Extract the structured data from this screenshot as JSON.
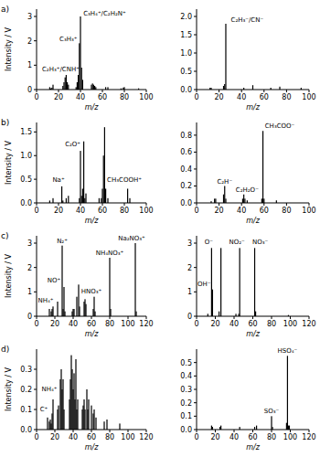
{
  "chart_data": [
    {
      "type": "bar",
      "title": "a)",
      "xlabel": "m/z",
      "ylabel": "Intensity / V",
      "color": "#000000",
      "x": [
        12,
        13,
        14,
        15,
        24,
        25,
        26,
        27,
        28,
        29,
        36,
        37,
        38,
        39,
        40,
        41,
        42,
        50,
        51,
        52,
        53,
        54,
        63,
        65,
        77,
        79,
        80,
        93
      ],
      "values": [
        0.1,
        0.05,
        0.08,
        0.2,
        0.15,
        0.3,
        0.5,
        0.6,
        0.3,
        0.2,
        0.1,
        0.3,
        0.6,
        1.9,
        3.0,
        0.9,
        0.4,
        0.2,
        0.25,
        0.2,
        0.15,
        0.1,
        0.1,
        0.1,
        0.05,
        0.08,
        0.1,
        0.05
      ],
      "xlim": [
        0,
        100
      ],
      "xticks": [
        0,
        20,
        40,
        60,
        80,
        100
      ],
      "ylim": [
        0,
        3.3
      ],
      "yticks": [
        0,
        1,
        2,
        3
      ],
      "annotations": [
        {
          "text": "C₂H₃⁺/CNH⁺",
          "x": 22,
          "y": 0.75
        },
        {
          "text": "C₃H₃⁺",
          "x": 29,
          "y": 2.0
        },
        {
          "text": "C₃H₄⁺/C₂H₂N⁺",
          "x": 62,
          "y": 3.05
        }
      ]
    },
    {
      "type": "bar",
      "xlabel": "m/z",
      "color": "#000000",
      "x": [
        12,
        13,
        24,
        25,
        26,
        42,
        50,
        66,
        74,
        93
      ],
      "values": [
        0.05,
        0.05,
        0.1,
        0.15,
        1.8,
        0.05,
        0.12,
        0.05,
        0.08,
        0.05
      ],
      "xlim": [
        0,
        100
      ],
      "xticks": [
        0,
        20,
        40,
        60,
        80,
        100
      ],
      "ylim": [
        0,
        2.2
      ],
      "yticks": [
        {
          "value": 0,
          "label": "0.0"
        },
        {
          "value": 0.5,
          "label": "0.5"
        },
        {
          "value": 1,
          "label": "1.0"
        },
        {
          "value": 1.5,
          "label": "1.5"
        },
        {
          "value": 2,
          "label": "2.0"
        }
      ],
      "annotations": [
        {
          "text": "C₂H₃⁻/CN⁻",
          "x": 45,
          "y": 1.85
        }
      ]
    },
    {
      "type": "bar",
      "title": "b)",
      "xlabel": "m/z",
      "ylabel": "Intensity / V",
      "color": "#000000",
      "x": [
        12,
        15,
        23,
        24,
        27,
        29,
        39,
        40,
        41,
        42,
        43,
        44,
        45,
        57,
        59,
        60,
        61,
        62,
        63,
        65,
        83,
        85
      ],
      "values": [
        0.05,
        0.1,
        0.35,
        0.05,
        0.1,
        0.15,
        0.1,
        1.1,
        0.15,
        0.3,
        1.3,
        0.1,
        0.2,
        0.1,
        0.1,
        0.3,
        1.0,
        1.6,
        0.3,
        0.1,
        0.3,
        0.1
      ],
      "xlim": [
        0,
        100
      ],
      "xticks": [
        0,
        20,
        40,
        60,
        80,
        100
      ],
      "ylim": [
        0,
        1.7
      ],
      "yticks": [
        {
          "value": 0,
          "label": "0.0"
        },
        {
          "value": 0.5,
          "label": "0.5"
        },
        {
          "value": 1,
          "label": "1.0"
        },
        {
          "value": 1.5,
          "label": "1.5"
        }
      ],
      "annotations": [
        {
          "text": "Na⁺",
          "x": 20,
          "y": 0.45
        },
        {
          "text": "C₂O⁺",
          "x": 33,
          "y": 1.2
        },
        {
          "text": "CH₃COOH⁺",
          "x": 80,
          "y": 0.45
        }
      ]
    },
    {
      "type": "bar",
      "xlabel": "m/z",
      "color": "#000000",
      "x": [
        13,
        16,
        17,
        24,
        25,
        26,
        41,
        42,
        43,
        45,
        58,
        59,
        60,
        71
      ],
      "values": [
        0.02,
        0.05,
        0.05,
        0.1,
        0.2,
        0.05,
        0.05,
        0.1,
        0.05,
        0.03,
        0.05,
        0.85,
        0.05,
        0.03
      ],
      "xlim": [
        0,
        100
      ],
      "xticks": [
        0,
        20,
        40,
        60,
        80,
        100
      ],
      "ylim": [
        0,
        0.95
      ],
      "yticks": [
        {
          "value": 0,
          "label": "0.0"
        },
        {
          "value": 0.2,
          "label": "0.2"
        },
        {
          "value": 0.4,
          "label": "0.4"
        },
        {
          "value": 0.6,
          "label": "0.6"
        },
        {
          "value": 0.8,
          "label": "0.8"
        }
      ],
      "annotations": [
        {
          "text": "C₂H⁻",
          "x": 25,
          "y": 0.23
        },
        {
          "text": "C₂H₂O⁻",
          "x": 45,
          "y": 0.13
        },
        {
          "text": "CH₃COO⁻",
          "x": 74,
          "y": 0.88
        }
      ]
    },
    {
      "type": "bar",
      "title": "c)",
      "xlabel": "m/z",
      "ylabel": "Intensity / V",
      "color": "#000000",
      "x": [
        14,
        16,
        17,
        18,
        23,
        28,
        29,
        30,
        31,
        39,
        40,
        41,
        44,
        46,
        47,
        52,
        53,
        54,
        62,
        63,
        64,
        80,
        81,
        108,
        109
      ],
      "values": [
        0.3,
        0.2,
        0.3,
        0.4,
        0.6,
        2.9,
        0.3,
        1.2,
        0.2,
        0.2,
        0.3,
        0.3,
        0.8,
        1.3,
        0.4,
        0.6,
        0.7,
        0.5,
        0.3,
        0.8,
        0.2,
        2.4,
        0.3,
        3.0,
        0.2
      ],
      "xlim": [
        0,
        120
      ],
      "xticks": [
        0,
        20,
        40,
        60,
        80,
        100,
        120
      ],
      "ylim": [
        0,
        3.3
      ],
      "yticks": [
        0,
        1,
        2,
        3
      ],
      "annotations": [
        {
          "text": "NH₄⁺",
          "x": 10,
          "y": 0.55
        },
        {
          "text": "NO⁺",
          "x": 19,
          "y": 1.4
        },
        {
          "text": "N₂⁺",
          "x": 28,
          "y": 3.0
        },
        {
          "text": "HNO₃⁺",
          "x": 60,
          "y": 0.95
        },
        {
          "text": "NH₄NO₃⁺",
          "x": 80,
          "y": 2.5
        },
        {
          "text": "Na₂NO₃⁺",
          "x": 104,
          "y": 3.1
        }
      ]
    },
    {
      "type": "bar",
      "xlabel": "m/z",
      "color": "#000000",
      "x": [
        12,
        16,
        17,
        24,
        26,
        42,
        45,
        46,
        62,
        63,
        98
      ],
      "values": [
        0.1,
        2.8,
        1.1,
        0.2,
        2.8,
        0.1,
        0.1,
        2.8,
        2.8,
        0.2,
        0.05
      ],
      "xlim": [
        0,
        120
      ],
      "xticks": [
        0,
        20,
        40,
        60,
        80,
        100,
        120
      ],
      "ylim": [
        0,
        3.3
      ],
      "yticks": [
        0,
        1,
        2,
        3
      ],
      "annotations": [
        {
          "text": "O⁻",
          "x": 13,
          "y": 2.95
        },
        {
          "text": "OH⁻",
          "x": 8,
          "y": 1.25
        },
        {
          "text": "NO₂⁻",
          "x": 43,
          "y": 2.95
        },
        {
          "text": "NO₃⁻",
          "x": 68,
          "y": 2.95
        }
      ]
    },
    {
      "type": "bar",
      "title": "d)",
      "xlabel": "m/z",
      "ylabel": "Intensity / V",
      "color": "#000000",
      "x": [
        12,
        14,
        15,
        16,
        17,
        18,
        23,
        24,
        26,
        27,
        28,
        29,
        30,
        36,
        37,
        38,
        39,
        40,
        41,
        42,
        43,
        44,
        45,
        50,
        51,
        52,
        53,
        55,
        56,
        57,
        60,
        62,
        63,
        65,
        74,
        77,
        91
      ],
      "values": [
        0.06,
        0.04,
        0.05,
        0.03,
        0.08,
        0.15,
        0.1,
        0.12,
        0.25,
        0.3,
        0.2,
        0.25,
        0.1,
        0.15,
        0.25,
        0.37,
        0.3,
        0.2,
        0.28,
        0.15,
        0.35,
        0.1,
        0.15,
        0.1,
        0.12,
        0.15,
        0.1,
        0.2,
        0.1,
        0.15,
        0.12,
        0.08,
        0.1,
        0.06,
        0.04,
        0.05,
        0.03
      ],
      "xlim": [
        0,
        120
      ],
      "xticks": [
        0,
        20,
        40,
        60,
        80,
        100,
        120
      ],
      "ylim": [
        0,
        0.4
      ],
      "yticks": [
        {
          "value": 0,
          "label": "0.0"
        },
        {
          "value": 0.1,
          "label": "0.1"
        },
        {
          "value": 0.2,
          "label": "0.2"
        },
        {
          "value": 0.3,
          "label": "0.3"
        }
      ],
      "annotations": [
        {
          "text": "NH₄⁺",
          "x": 14,
          "y": 0.19
        },
        {
          "text": "C⁺",
          "x": 8,
          "y": 0.09
        }
      ]
    },
    {
      "type": "bar",
      "xlabel": "m/z",
      "color": "#000000",
      "x": [
        16,
        17,
        25,
        26,
        46,
        62,
        64,
        80,
        81,
        96,
        97,
        98,
        99
      ],
      "values": [
        0.03,
        0.02,
        0.02,
        0.03,
        0.02,
        0.02,
        0.03,
        0.1,
        0.02,
        0.05,
        0.55,
        0.03,
        0.03
      ],
      "xlim": [
        0,
        120
      ],
      "xticks": [
        0,
        20,
        40,
        60,
        80,
        100,
        120
      ],
      "ylim": [
        0,
        0.6
      ],
      "yticks": [
        {
          "value": 0,
          "label": "0.0"
        },
        {
          "value": 0.1,
          "label": "0.1"
        },
        {
          "value": 0.2,
          "label": "0.2"
        },
        {
          "value": 0.3,
          "label": "0.3"
        },
        {
          "value": 0.4,
          "label": "0.4"
        },
        {
          "value": 0.5,
          "label": "0.5"
        }
      ],
      "annotations": [
        {
          "text": "SO₃⁻",
          "x": 80,
          "y": 0.12
        },
        {
          "text": "HSO₄⁻",
          "x": 97,
          "y": 0.57
        }
      ]
    }
  ]
}
